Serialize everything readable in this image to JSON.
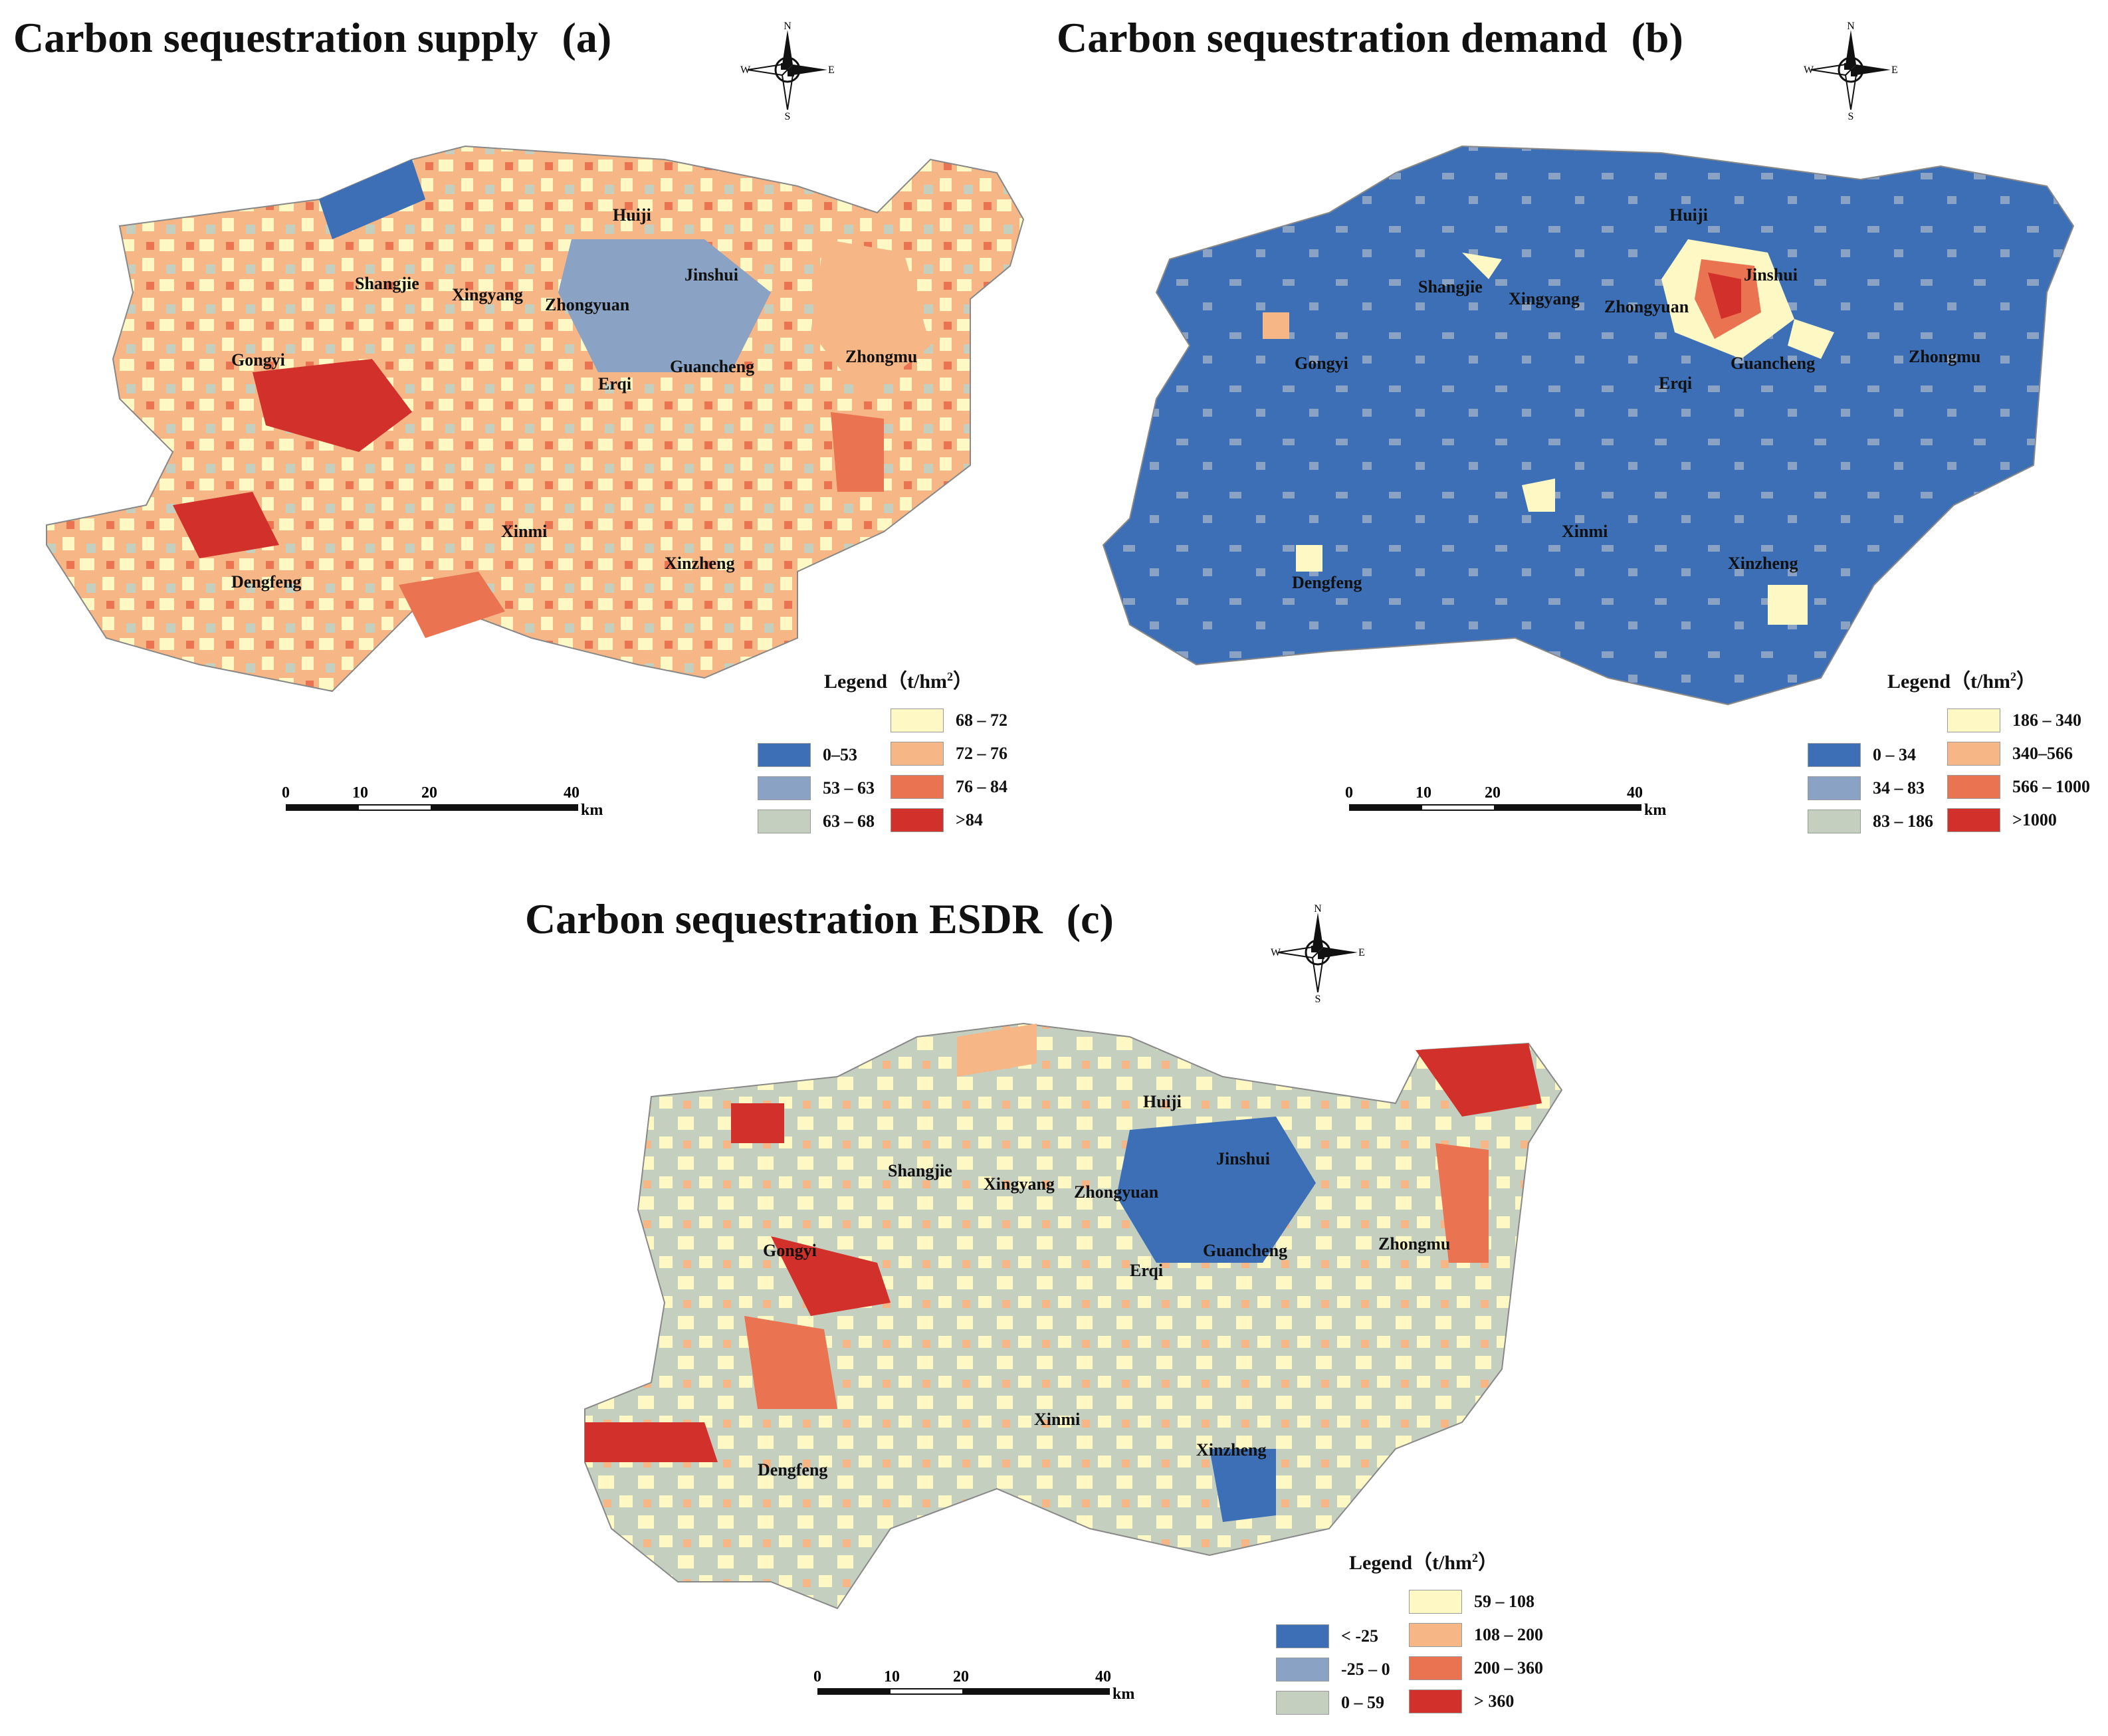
{
  "panels": [
    {
      "id": "a",
      "title": "Carbon sequestration supply",
      "tag": "(a)",
      "legend_title": "Legend（t/hm",
      "legend_sup": "2",
      "legend_title_end": "）",
      "legend_items": [
        {
          "label": "0–53",
          "color": "#3d6fb6"
        },
        {
          "label": "53 – 63",
          "color": "#8aa3c4"
        },
        {
          "label": "63 – 68",
          "color": "#c5cfc0"
        },
        {
          "label": "68 – 72",
          "color": "#fdf8c4"
        },
        {
          "label": "72 – 76",
          "color": "#f6b686"
        },
        {
          "label": "76 – 84",
          "color": "#ea7452"
        },
        {
          "label": ">84",
          "color": "#d2302a"
        }
      ]
    },
    {
      "id": "b",
      "title": "Carbon sequestration demand",
      "tag": "(b)",
      "legend_title": "Legend（t/hm",
      "legend_sup": "2",
      "legend_title_end": "）",
      "legend_items": [
        {
          "label": "0 – 34",
          "color": "#3d6fb6"
        },
        {
          "label": "34 – 83",
          "color": "#8aa3c4"
        },
        {
          "label": "83 – 186",
          "color": "#c5cfc0"
        },
        {
          "label": "186 – 340",
          "color": "#fdf8c4"
        },
        {
          "label": "340–566",
          "color": "#f6b686"
        },
        {
          "label": "566 – 1000",
          "color": "#ea7452"
        },
        {
          "label": ">1000",
          "color": "#d2302a"
        }
      ]
    },
    {
      "id": "c",
      "title": "Carbon sequestration ESDR",
      "tag": "(c)",
      "legend_title": "Legend（t/hm",
      "legend_sup": "2",
      "legend_title_end": "）",
      "legend_items": [
        {
          "label": "< -25",
          "color": "#3d6fb6"
        },
        {
          "label": "-25 – 0",
          "color": "#8aa3c4"
        },
        {
          "label": "0 – 59",
          "color": "#c5cfc0"
        },
        {
          "label": "59 – 108",
          "color": "#fdf8c4"
        },
        {
          "label": "108 – 200",
          "color": "#f6b686"
        },
        {
          "label": "200 – 360",
          "color": "#ea7452"
        },
        {
          "label": "> 360",
          "color": "#d2302a"
        }
      ]
    }
  ],
  "places": [
    "Huiji",
    "Jinshui",
    "Shangjie",
    "Xingyang",
    "Zhongyuan",
    "Gongyi",
    "Guancheng",
    "Erqi",
    "Zhongmu",
    "Xinmi",
    "Xinzheng",
    "Dengfeng"
  ],
  "scale": {
    "ticks": [
      "0",
      "10",
      "20",
      "40"
    ],
    "unit": "km"
  },
  "compass": {
    "n": "N",
    "s": "S",
    "e": "E",
    "w": "W"
  }
}
